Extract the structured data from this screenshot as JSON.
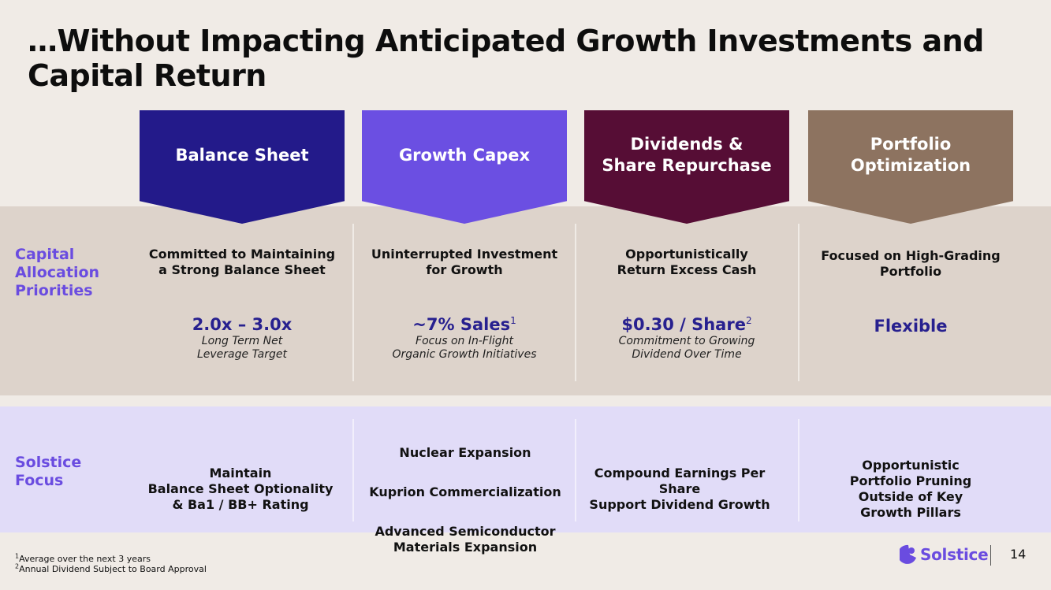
{
  "title": "…Without Impacting Anticipated Growth Investments and Capital Return",
  "colors": {
    "background": "#f0ebe6",
    "band_priorities": "#ddd3cb",
    "band_focus": "#e1dcf8",
    "accent": "#6a4ce0",
    "metric": "#27208f"
  },
  "pillars": [
    {
      "label": "Balance Sheet",
      "color": "#231a8a"
    },
    {
      "label": "Growth Capex",
      "color": "#6b4fe2"
    },
    {
      "label": "Dividends &\nShare Repurchase",
      "color": "#560d35"
    },
    {
      "label": "Portfolio\nOptimization",
      "color": "#8d7360"
    }
  ],
  "rows": {
    "priorities_label": "Capital\nAllocation\nPriorities",
    "focus_label": "Solstice\nFocus"
  },
  "priorities": [
    {
      "heading": "Committed to Maintaining\na Strong Balance Sheet",
      "metric": "2.0x – 3.0x",
      "sup": "",
      "sub": "Long Term Net\nLeverage Target"
    },
    {
      "heading": "Uninterrupted Investment\nfor Growth",
      "metric": "~7% Sales",
      "sup": "1",
      "sub": "Focus on In-Flight\nOrganic Growth Initiatives"
    },
    {
      "heading": "Opportunistically\nReturn Excess Cash",
      "metric": "$0.30 / Share",
      "sup": "2",
      "sub": "Commitment to Growing\nDividend Over Time"
    },
    {
      "heading": "Focused on High-Grading\nPortfolio",
      "metric": "Flexible",
      "sup": "",
      "sub": ""
    }
  ],
  "focus": [
    {
      "lines": [
        "Maintain\nBalance Sheet Optionality\n&  Ba1 / BB+ Rating"
      ]
    },
    {
      "lines": [
        "Nuclear Expansion",
        "Kuprion Commercialization",
        "Advanced Semiconductor\nMaterials Expansion"
      ]
    },
    {
      "lines": [
        "Compound Earnings Per\nShare\nSupport Dividend Growth"
      ]
    },
    {
      "lines": [
        "Opportunistic\nPortfolio Pruning\nOutside of Key\nGrowth Pillars"
      ]
    }
  ],
  "footnotes": [
    {
      "sup": "1",
      "text": "Average over the next 3 years"
    },
    {
      "sup": "2",
      "text": "Annual Dividend Subject to Board Approval"
    }
  ],
  "logo": {
    "text": "Solstice",
    "icon": "solstice-logo-icon"
  },
  "page_number": "14"
}
